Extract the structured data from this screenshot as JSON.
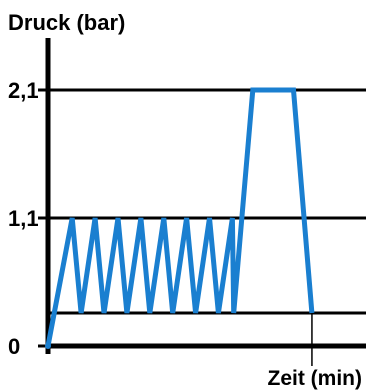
{
  "chart_data": {
    "type": "line",
    "ylabel": "Druck (bar)",
    "xlabel": "Zeit (min)",
    "y_ticks": [
      {
        "value": 0,
        "label": "0"
      },
      {
        "value": 1.1,
        "label": "1,1"
      },
      {
        "value": 2.1,
        "label": "2,1"
      }
    ],
    "ylim": [
      0,
      2.8
    ],
    "xlim": [
      0,
      100
    ],
    "grid_levels": [
      0,
      0.3,
      1.1,
      2.1
    ],
    "series": [
      {
        "color": "#1a7fd0",
        "x": [
          0,
          7.6,
          10.4,
          14.8,
          17.6,
          22.0,
          24.8,
          29.2,
          32.0,
          36.4,
          39.2,
          43.6,
          46.4,
          50.8,
          53.6,
          58.0,
          58.4,
          64.4,
          77.2,
          83.0
        ],
        "y": [
          0,
          1.1,
          0.3,
          1.1,
          0.3,
          1.1,
          0.3,
          1.1,
          0.3,
          1.1,
          0.3,
          1.1,
          0.3,
          1.1,
          0.3,
          1.1,
          0.3,
          2.1,
          2.1,
          0.3
        ]
      }
    ],
    "end_marker_x": 83.0
  }
}
